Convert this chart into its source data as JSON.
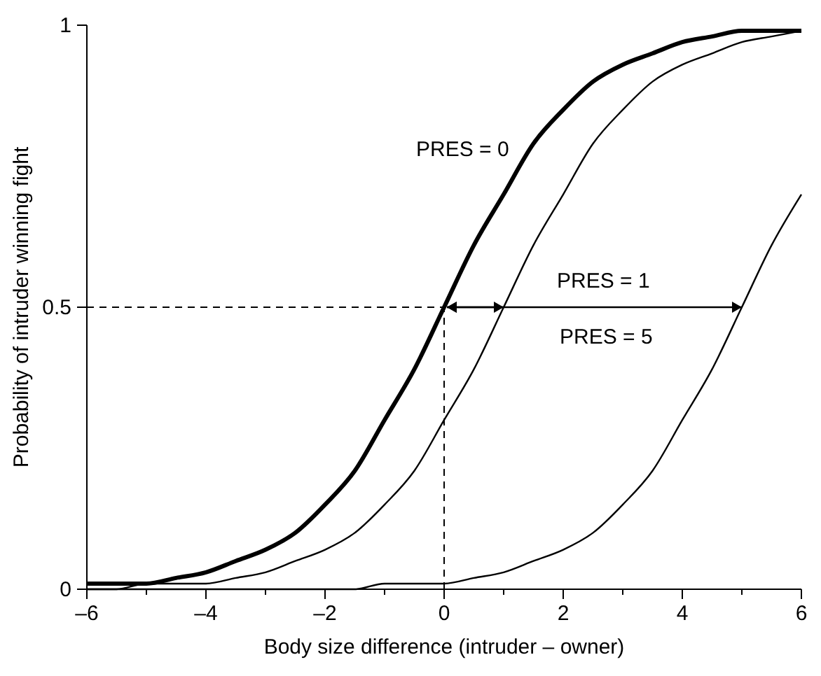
{
  "chart_data": {
    "type": "line",
    "xlabel": "Body size difference (intruder – owner)",
    "ylabel": "Probability of intruder winning fight",
    "x": [
      -6,
      -5.5,
      -5,
      -4.5,
      -4,
      -3.5,
      -3,
      -2.5,
      -2,
      -1.5,
      -1,
      -0.5,
      0,
      0.5,
      1,
      1.5,
      2,
      2.5,
      3,
      3.5,
      4,
      4.5,
      5,
      5.5,
      6
    ],
    "series": [
      {
        "name": "PRES = 0",
        "color": "#000000",
        "values": [
          0.01,
          0.01,
          0.01,
          0.02,
          0.03,
          0.05,
          0.07,
          0.1,
          0.15,
          0.21,
          0.3,
          0.39,
          0.5,
          0.61,
          0.7,
          0.79,
          0.85,
          0.9,
          0.93,
          0.95,
          0.97,
          0.98,
          0.99,
          0.99,
          0.99
        ]
      },
      {
        "name": "PRES = 1",
        "color": "#000000",
        "values": [
          0,
          0,
          0.01,
          0.01,
          0.01,
          0.02,
          0.03,
          0.05,
          0.07,
          0.1,
          0.15,
          0.21,
          0.3,
          0.39,
          0.5,
          0.61,
          0.7,
          0.79,
          0.85,
          0.9,
          0.93,
          0.95,
          0.97,
          0.98,
          0.99
        ]
      },
      {
        "name": "PRES = 5",
        "color": "#000000",
        "values": [
          0,
          0,
          0,
          0,
          0,
          0,
          0,
          0,
          0,
          0,
          0.01,
          0.01,
          0.01,
          0.02,
          0.03,
          0.05,
          0.07,
          0.1,
          0.15,
          0.21,
          0.3,
          0.39,
          0.5,
          0.61,
          0.7
        ]
      }
    ],
    "xlim": [
      -6,
      6
    ],
    "ylim": [
      0,
      1
    ],
    "xticks": [
      {
        "value": -6,
        "label": "–6"
      },
      {
        "value": -5,
        "label": null
      },
      {
        "value": -4,
        "label": "–4"
      },
      {
        "value": -3,
        "label": null
      },
      {
        "value": -2,
        "label": "–2"
      },
      {
        "value": -1,
        "label": null
      },
      0,
      {
        "value": 1,
        "label": null
      },
      2,
      {
        "value": 3,
        "label": null
      },
      4,
      {
        "value": 5,
        "label": null
      },
      6
    ],
    "yticks": [
      0,
      0.5,
      1
    ],
    "ref_lines": [
      {
        "axis": "y",
        "value": 0.5,
        "line_style": "dashed"
      },
      {
        "axis": "x",
        "value": 0,
        "line_style": "dashed"
      }
    ],
    "grid": false,
    "marker": "none",
    "line_style": "solid"
  }
}
